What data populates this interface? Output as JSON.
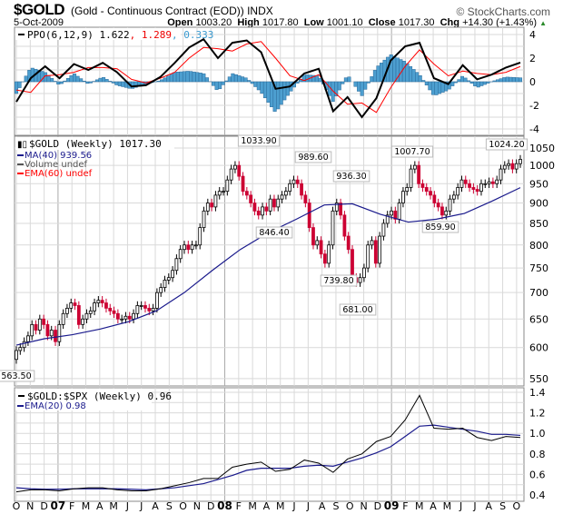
{
  "header": {
    "symbol": "$GOLD",
    "description": "(Gold - Continuous Contract (EOD))",
    "exchange": "INDX",
    "copyright": "© StockCharts.com",
    "date": "5-Oct-2009",
    "open_label": "Open",
    "open": "1003.20",
    "high_label": "High",
    "high": "1017.80",
    "low_label": "Low",
    "low": "1001.10",
    "close_label": "Close",
    "close": "1017.30",
    "chg_label": "Chg",
    "chg": "+14.30 (+1.43%)"
  },
  "colors": {
    "up_candle": "#000000",
    "down_candle": "#cc0033",
    "ma": "#1a1a8c",
    "ppo": "#000000",
    "signal": "#ff0000",
    "histogram": "#4d9fd0",
    "ratio": "#000000",
    "ema": "#1a1a8c",
    "grid": "#d9d9d9"
  },
  "chart_data": [
    {
      "type": "line",
      "panel": "ppo",
      "legend": {
        "label": "PPO(6,12,9)",
        "ppo": "1.622",
        "signal": "1.289",
        "histogram": "0.333"
      },
      "y_ticks": [
        "4",
        "2",
        "0",
        "-2",
        "-4"
      ],
      "ylim": [
        -4.5,
        4.5
      ],
      "series": [
        {
          "name": "PPO",
          "values": [
            -1.7,
            0.3,
            1.3,
            0.3,
            1.5,
            1.0,
            1.6,
            0.8,
            -0.4,
            -0.3,
            0.4,
            1.6,
            2.9,
            3.6,
            2.0,
            3.3,
            3.5,
            2.5,
            -0.6,
            -0.4,
            0.7,
            1.1,
            -2.5,
            -1.3,
            -3.0,
            -1.4,
            1.8,
            3.0,
            3.3,
            0.3,
            -0.2,
            1.4,
            0.2,
            0.6,
            1.2,
            1.622
          ]
        },
        {
          "name": "Signal",
          "values": [
            -0.7,
            -0.9,
            0.5,
            0.6,
            0.8,
            1.2,
            1.2,
            1.1,
            0.2,
            -0.1,
            0.3,
            0.8,
            2.0,
            2.9,
            2.8,
            2.6,
            3.2,
            3.4,
            2.0,
            0.5,
            0.1,
            0.6,
            -0.8,
            -1.9,
            -1.8,
            -2.6,
            -0.5,
            1.3,
            2.7,
            1.5,
            0.5,
            0.9,
            0.7,
            0.6,
            0.8,
            1.289
          ]
        }
      ]
    },
    {
      "type": "candlestick",
      "panel": "price",
      "scale": "log",
      "legend": {
        "label": "$GOLD (Weekly) 1017.30",
        "ma": "MA(40) 939.56",
        "volume": "Volume undef",
        "ema": "EMA(60) undef"
      },
      "y_ticks": [
        "1050",
        "1000",
        "950",
        "900",
        "850",
        "800",
        "750",
        "700",
        "650",
        "600",
        "550"
      ],
      "ylim": [
        540,
        1060
      ],
      "closes": [
        595,
        600,
        610,
        620,
        640,
        630,
        650,
        640,
        620,
        630,
        610,
        640,
        660,
        670,
        680,
        675,
        640,
        650,
        660,
        665,
        680,
        685,
        680,
        670,
        665,
        660,
        650,
        650,
        655,
        650,
        660,
        675,
        675,
        670,
        665,
        670,
        700,
        710,
        725,
        730,
        745,
        770,
        790,
        800,
        790,
        800,
        800,
        840,
        880,
        900,
        890,
        920,
        930,
        930,
        960,
        990,
        1000,
        970,
        930,
        920,
        900,
        880,
        870,
        890,
        880,
        910,
        890,
        910,
        920,
        930,
        950,
        960,
        950,
        920,
        900,
        840,
        800,
        810,
        780,
        760,
        800,
        880,
        900,
        870,
        820,
        790,
        730,
        720,
        730,
        750,
        800,
        810,
        760,
        820,
        850,
        870,
        880,
        860,
        900,
        930,
        940,
        990,
        1000,
        950,
        940,
        930,
        920,
        900,
        890,
        870,
        880,
        910,
        920,
        940,
        960,
        950,
        940,
        935,
        930,
        950,
        950,
        955,
        950,
        960,
        990,
        1000,
        1005,
        990,
        1005,
        1017.3
      ],
      "ma40": [
        604,
        615,
        622,
        632,
        645,
        665,
        700,
        745,
        790,
        828,
        860,
        895,
        898,
        872,
        853,
        860,
        874,
        905,
        939.56
      ],
      "annotations": [
        "563.50",
        "1033.90",
        "846.40",
        "989.60",
        "936.30",
        "739.80",
        "681.00",
        "1007.70",
        "859.90",
        "1024.20"
      ]
    },
    {
      "type": "line",
      "panel": "ratio",
      "legend": {
        "label": "$GOLD:$SPX (Weekly) 0.96",
        "ema": "EMA(20) 0.98"
      },
      "y_ticks": [
        "1.4",
        "1.2",
        "1.0",
        "0.8",
        "0.6",
        "0.4"
      ],
      "ylim": [
        0.38,
        1.42
      ],
      "series": [
        {
          "name": "$GOLD:$SPX",
          "values": [
            0.43,
            0.45,
            0.45,
            0.44,
            0.46,
            0.47,
            0.47,
            0.45,
            0.44,
            0.44,
            0.46,
            0.49,
            0.52,
            0.56,
            0.56,
            0.67,
            0.7,
            0.72,
            0.63,
            0.65,
            0.74,
            0.71,
            0.62,
            0.75,
            0.8,
            0.92,
            0.97,
            1.13,
            1.37,
            1.05,
            1.04,
            1.05,
            0.96,
            0.93,
            0.97,
            0.96
          ]
        },
        {
          "name": "EMA(20)",
          "values": [
            0.47,
            0.46,
            0.455,
            0.455,
            0.46,
            0.46,
            0.46,
            0.46,
            0.455,
            0.45,
            0.46,
            0.47,
            0.49,
            0.51,
            0.55,
            0.59,
            0.64,
            0.66,
            0.66,
            0.66,
            0.68,
            0.69,
            0.68,
            0.72,
            0.76,
            0.81,
            0.87,
            0.97,
            1.07,
            1.08,
            1.06,
            1.04,
            1.02,
            0.99,
            0.99,
            0.98
          ]
        }
      ]
    }
  ],
  "x_axis": {
    "months": [
      "O",
      "N",
      "D",
      "07",
      "F",
      "M",
      "A",
      "M",
      "J",
      "J",
      "A",
      "S",
      "O",
      "N",
      "D",
      "08",
      "F",
      "M",
      "A",
      "M",
      "J",
      "J",
      "A",
      "S",
      "O",
      "N",
      "D",
      "09",
      "F",
      "M",
      "A",
      "M",
      "J",
      "J",
      "A",
      "S",
      "O"
    ]
  }
}
